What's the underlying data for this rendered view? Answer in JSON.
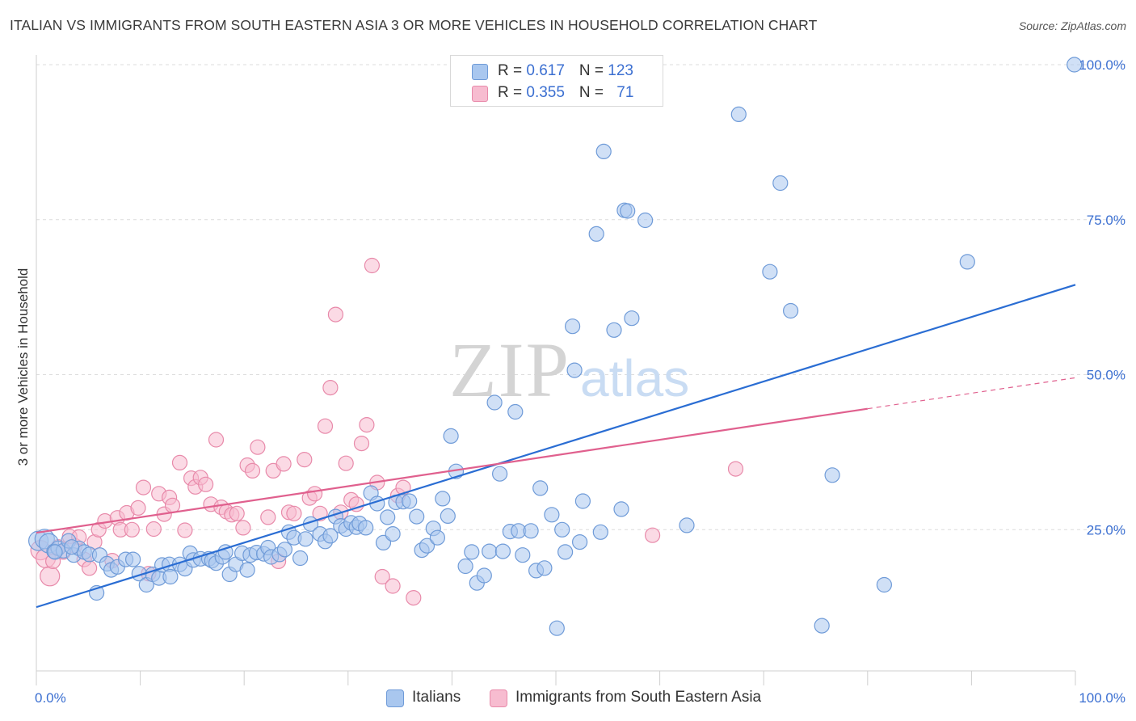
{
  "title": "ITALIAN VS IMMIGRANTS FROM SOUTH EASTERN ASIA 3 OR MORE VEHICLES IN HOUSEHOLD CORRELATION CHART",
  "source": "Source: ZipAtlas.com",
  "watermark": {
    "zip": "ZIP",
    "atlas": "atlas"
  },
  "legend": {
    "rows": [
      {
        "r_label": "R = ",
        "r_value": "0.617",
        "n_label": "N = ",
        "n_value": "123"
      },
      {
        "r_label": "R = ",
        "r_value": "0.355",
        "n_label": "N = ",
        "n_value": "71"
      }
    ]
  },
  "bottom_legend": [
    "Italians",
    "Immigrants from South Eastern Asia"
  ],
  "colors": {
    "blue_fill": "#a9c7ef",
    "blue_stroke": "#6f9bd8",
    "blue_line": "#2a6dd3",
    "pink_fill": "#f7bcd0",
    "pink_stroke": "#e88aaa",
    "pink_line": "#e0608e",
    "axis_label": "#3b6fd1",
    "grid": "#dcdcdc"
  },
  "chart_data": {
    "type": "scatter",
    "title": "ITALIAN VS IMMIGRANTS FROM SOUTH EASTERN ASIA 3 OR MORE VEHICLES IN HOUSEHOLD CORRELATION CHART",
    "xlabel": "",
    "ylabel": "3 or more Vehicles in Household",
    "xlim": [
      0,
      100
    ],
    "ylim": [
      0,
      100
    ],
    "x_tick_labels": [
      "0.0%",
      "100.0%"
    ],
    "y_tick_labels": [
      "25.0%",
      "50.0%",
      "75.0%",
      "100.0%"
    ],
    "y_ticks": [
      25,
      50,
      75,
      100
    ],
    "grid": true,
    "series": [
      {
        "name": "Italians",
        "trend": {
          "x": [
            0,
            100
          ],
          "y": [
            12.5,
            64.5
          ]
        },
        "points": [
          [
            0.2,
            23.2
          ],
          [
            0.8,
            23.5
          ],
          [
            1.2,
            22.8
          ],
          [
            1.7,
            21.5
          ],
          [
            2.1,
            22.0
          ],
          [
            2.6,
            21.6
          ],
          [
            3.1,
            23.2
          ],
          [
            3.6,
            20.9
          ],
          [
            4.1,
            22.0
          ],
          [
            4.6,
            21.4
          ],
          [
            5.1,
            21.0
          ],
          [
            5.8,
            14.8
          ],
          [
            6.1,
            20.9
          ],
          [
            6.8,
            19.5
          ],
          [
            7.2,
            18.5
          ],
          [
            7.8,
            19.0
          ],
          [
            8.6,
            20.2
          ],
          [
            9.3,
            20.2
          ],
          [
            9.9,
            17.9
          ],
          [
            10.6,
            16.1
          ],
          [
            11.2,
            17.8
          ],
          [
            11.8,
            17.2
          ],
          [
            12.1,
            19.3
          ],
          [
            12.8,
            19.4
          ],
          [
            12.9,
            17.4
          ],
          [
            13.8,
            19.4
          ],
          [
            14.3,
            18.7
          ],
          [
            14.8,
            21.2
          ],
          [
            15.1,
            20.1
          ],
          [
            15.8,
            20.3
          ],
          [
            16.6,
            20.3
          ],
          [
            16.9,
            20.0
          ],
          [
            17.3,
            19.6
          ],
          [
            17.9,
            20.6
          ],
          [
            18.2,
            21.4
          ],
          [
            18.6,
            17.8
          ],
          [
            19.2,
            19.4
          ],
          [
            19.8,
            21.2
          ],
          [
            20.3,
            18.5
          ],
          [
            20.6,
            20.9
          ],
          [
            21.2,
            21.3
          ],
          [
            21.9,
            21.1
          ],
          [
            22.3,
            22.1
          ],
          [
            22.6,
            20.6
          ],
          [
            23.4,
            21.0
          ],
          [
            23.9,
            21.8
          ],
          [
            24.3,
            24.6
          ],
          [
            24.8,
            23.7
          ],
          [
            25.4,
            20.4
          ],
          [
            25.9,
            23.5
          ],
          [
            26.4,
            25.9
          ],
          [
            27.3,
            24.3
          ],
          [
            27.8,
            23.1
          ],
          [
            28.3,
            24.0
          ],
          [
            28.8,
            27.1
          ],
          [
            29.3,
            25.6
          ],
          [
            29.8,
            25.1
          ],
          [
            30.3,
            26.1
          ],
          [
            30.8,
            25.4
          ],
          [
            31.1,
            26.0
          ],
          [
            31.7,
            25.3
          ],
          [
            32.2,
            30.9
          ],
          [
            32.8,
            29.2
          ],
          [
            33.4,
            22.9
          ],
          [
            33.8,
            27.0
          ],
          [
            34.3,
            24.3
          ],
          [
            34.6,
            29.4
          ],
          [
            35.3,
            29.5
          ],
          [
            35.9,
            29.6
          ],
          [
            36.6,
            27.1
          ],
          [
            37.1,
            21.7
          ],
          [
            37.6,
            22.4
          ],
          [
            38.2,
            25.2
          ],
          [
            38.6,
            23.7
          ],
          [
            39.1,
            30.0
          ],
          [
            39.6,
            27.2
          ],
          [
            39.9,
            40.1
          ],
          [
            40.4,
            34.4
          ],
          [
            41.3,
            19.1
          ],
          [
            41.9,
            21.4
          ],
          [
            42.4,
            16.4
          ],
          [
            43.1,
            17.6
          ],
          [
            43.6,
            21.5
          ],
          [
            44.1,
            45.5
          ],
          [
            44.6,
            34.0
          ],
          [
            44.9,
            21.5
          ],
          [
            45.6,
            24.7
          ],
          [
            46.1,
            44.0
          ],
          [
            46.4,
            24.8
          ],
          [
            46.8,
            20.9
          ],
          [
            47.6,
            24.8
          ],
          [
            48.1,
            18.4
          ],
          [
            48.5,
            31.7
          ],
          [
            48.9,
            18.8
          ],
          [
            49.6,
            27.4
          ],
          [
            50.1,
            9.1
          ],
          [
            50.6,
            25.0
          ],
          [
            50.9,
            21.4
          ],
          [
            51.6,
            57.8
          ],
          [
            51.8,
            50.7
          ],
          [
            52.3,
            23.0
          ],
          [
            52.6,
            29.6
          ],
          [
            53.9,
            72.7
          ],
          [
            54.3,
            24.6
          ],
          [
            54.6,
            86.0
          ],
          [
            55.6,
            57.2
          ],
          [
            56.3,
            28.3
          ],
          [
            56.6,
            76.5
          ],
          [
            56.9,
            76.4
          ],
          [
            57.3,
            59.1
          ],
          [
            58.6,
            74.9
          ],
          [
            62.6,
            25.7
          ],
          [
            67.6,
            92.0
          ],
          [
            70.6,
            66.6
          ],
          [
            71.6,
            80.9
          ],
          [
            72.6,
            60.3
          ],
          [
            75.6,
            9.5
          ],
          [
            76.6,
            33.8
          ],
          [
            81.6,
            16.1
          ],
          [
            89.6,
            68.2
          ],
          [
            99.9,
            100.0
          ],
          [
            1.8,
            21.4
          ],
          [
            3.4,
            22.2
          ]
        ]
      },
      {
        "name": "Immigrants from South Eastern Asia",
        "trend": {
          "x": [
            0,
            80
          ],
          "y": [
            24.5,
            44.5
          ]
        },
        "trend_extension": {
          "x": [
            80,
            100
          ],
          "y": [
            44.5,
            49.5
          ]
        },
        "points": [
          [
            0.4,
            21.7
          ],
          [
            0.9,
            20.4
          ],
          [
            1.3,
            17.5
          ],
          [
            1.6,
            19.9
          ],
          [
            2.1,
            22.2
          ],
          [
            2.6,
            21.4
          ],
          [
            3.2,
            23.9
          ],
          [
            3.7,
            22.4
          ],
          [
            4.1,
            23.8
          ],
          [
            4.6,
            20.2
          ],
          [
            5.1,
            18.8
          ],
          [
            5.6,
            23.0
          ],
          [
            6.0,
            25.0
          ],
          [
            6.6,
            26.4
          ],
          [
            7.3,
            20.0
          ],
          [
            7.8,
            26.9
          ],
          [
            8.1,
            25.0
          ],
          [
            8.7,
            27.7
          ],
          [
            9.2,
            25.0
          ],
          [
            9.8,
            28.5
          ],
          [
            10.3,
            31.8
          ],
          [
            10.8,
            17.9
          ],
          [
            11.3,
            25.1
          ],
          [
            11.8,
            30.8
          ],
          [
            12.3,
            27.5
          ],
          [
            12.8,
            30.2
          ],
          [
            13.1,
            28.9
          ],
          [
            13.8,
            35.8
          ],
          [
            14.3,
            24.9
          ],
          [
            14.9,
            33.3
          ],
          [
            15.3,
            31.9
          ],
          [
            15.8,
            33.4
          ],
          [
            16.3,
            32.3
          ],
          [
            16.8,
            29.1
          ],
          [
            17.3,
            39.5
          ],
          [
            17.8,
            28.6
          ],
          [
            18.3,
            27.9
          ],
          [
            18.8,
            27.4
          ],
          [
            19.3,
            27.6
          ],
          [
            19.9,
            25.3
          ],
          [
            20.3,
            35.4
          ],
          [
            20.8,
            34.5
          ],
          [
            21.3,
            38.3
          ],
          [
            22.3,
            27.0
          ],
          [
            22.8,
            34.5
          ],
          [
            23.3,
            19.9
          ],
          [
            23.8,
            35.6
          ],
          [
            24.3,
            27.8
          ],
          [
            24.8,
            27.6
          ],
          [
            25.8,
            36.3
          ],
          [
            26.3,
            30.1
          ],
          [
            26.8,
            30.8
          ],
          [
            27.3,
            27.6
          ],
          [
            27.8,
            41.7
          ],
          [
            28.3,
            47.9
          ],
          [
            28.8,
            59.7
          ],
          [
            29.3,
            27.8
          ],
          [
            29.8,
            35.7
          ],
          [
            30.3,
            29.8
          ],
          [
            30.8,
            29.1
          ],
          [
            31.3,
            38.9
          ],
          [
            31.8,
            41.9
          ],
          [
            32.3,
            67.6
          ],
          [
            32.8,
            32.6
          ],
          [
            33.3,
            17.4
          ],
          [
            34.3,
            15.9
          ],
          [
            34.8,
            30.5
          ],
          [
            35.3,
            31.8
          ],
          [
            36.3,
            14.0
          ],
          [
            59.3,
            24.1
          ],
          [
            67.3,
            34.8
          ]
        ]
      }
    ]
  }
}
